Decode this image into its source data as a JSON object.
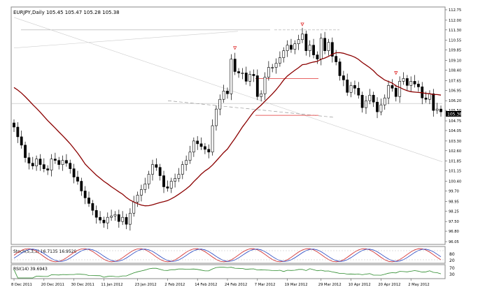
{
  "chart_data": {
    "type": "candlestick",
    "symbol_header": "EURJPY,Daily  105.45 105.47 105.28 105.38",
    "last_price_label": "105.38",
    "y_tick_labels": [
      "112.75",
      "112.00",
      "111.30",
      "110.55",
      "109.85",
      "109.10",
      "108.40",
      "107.65",
      "106.95",
      "106.20",
      "105.50",
      "104.75",
      "104.05",
      "103.30",
      "102.60",
      "101.85",
      "101.15",
      "100.40",
      "99.70",
      "98.95",
      "98.25",
      "97.50",
      "96.80",
      "96.05"
    ],
    "ylim": [
      96.05,
      112.75
    ],
    "x_tick_labels": [
      "8 Dec 2011",
      "20 Dec 2011",
      "30 Dec 2011",
      "11 Jan 2012",
      "23 Jan 2012",
      "2 Feb 2012",
      "14 Feb 2012",
      "24 Feb 2012",
      "7 Mar 2012",
      "19 Mar 2012",
      "29 Mar 2012",
      "10 Apr 2012",
      "20 Apr 2012",
      "2 May 2012"
    ],
    "closes": [
      104.3,
      103.6,
      103.0,
      102.1,
      101.7,
      101.5,
      102.0,
      101.6,
      101.3,
      101.2,
      102.0,
      101.9,
      101.6,
      101.9,
      101.7,
      101.3,
      100.7,
      100.4,
      99.7,
      99.2,
      98.8,
      98.3,
      97.8,
      97.6,
      97.4,
      97.8,
      97.9,
      98.0,
      97.5,
      97.8,
      97.3,
      98.1,
      98.9,
      99.4,
      99.8,
      100.2,
      100.9,
      101.6,
      101.4,
      100.8,
      100.0,
      99.9,
      100.4,
      100.6,
      100.9,
      101.6,
      101.9,
      102.5,
      103.3,
      103.1,
      102.9,
      102.7,
      102.5,
      104.4,
      105.6,
      106.3,
      106.9,
      106.7,
      109.2,
      108.3,
      108.2,
      108.2,
      107.6,
      108.1,
      108.0,
      106.5,
      106.7,
      107.9,
      108.6,
      108.6,
      108.9,
      109.3,
      109.8,
      110.2,
      109.9,
      110.3,
      110.6,
      111.0,
      109.8,
      110.2,
      109.5,
      109.2,
      110.7,
      109.8,
      110.4,
      109.4,
      109.0,
      108.0,
      107.7,
      106.8,
      107.3,
      107.1,
      106.6,
      105.7,
      106.2,
      106.6,
      106.1,
      105.4,
      105.9,
      106.4,
      107.3,
      107.1,
      106.5,
      107.6,
      107.8,
      107.3,
      107.6,
      107.4,
      107.2,
      106.4,
      106.3,
      106.7,
      105.5,
      105.6,
      105.4
    ],
    "ma_label": "",
    "annotations": [
      "fractal arrows",
      "horizontal resistance lines",
      "trendlines"
    ],
    "indicators": [
      {
        "label": "Stoch(5,3,3) 16.7135 16.9520",
        "levels": [
          "80",
          "20"
        ]
      },
      {
        "label": "RSI(14) 39.6943",
        "levels": [
          "70",
          "30"
        ]
      }
    ],
    "colors": {
      "candle_up": "#ffffff",
      "candle_down": "#000000",
      "ma": "#8b0000",
      "stoch_main": "#d02020",
      "stoch_signal": "#2040c0",
      "rsi": "#2a8a2a",
      "resistance": "#e03030"
    }
  }
}
